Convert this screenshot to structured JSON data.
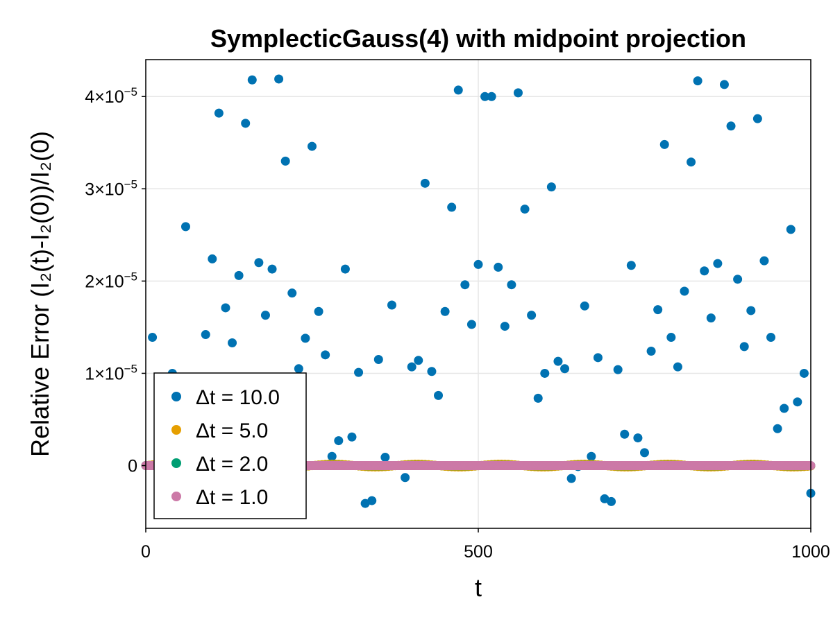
{
  "chart_data": {
    "type": "scatter",
    "title": "SymplecticGauss(4) with midpoint projection",
    "xlabel": "t",
    "ylabel": "Relative Error (I₂(t)-I₂(0))/I₂(0)",
    "xlim": [
      0,
      1000
    ],
    "ylim": [
      -6.8e-06,
      4.4e-05
    ],
    "x_ticks": [
      0,
      500,
      1000
    ],
    "x_tick_labels": [
      "0",
      "500",
      "1000"
    ],
    "y_ticks": [
      0,
      1e-05,
      2e-05,
      3e-05,
      4e-05
    ],
    "y_tick_labels": [
      {
        "mantissa": "0",
        "exponent": ""
      },
      {
        "mantissa": "1×10",
        "exponent": "−5"
      },
      {
        "mantissa": "2×10",
        "exponent": "−5"
      },
      {
        "mantissa": "3×10",
        "exponent": "−5"
      },
      {
        "mantissa": "4×10",
        "exponent": "−5"
      }
    ],
    "grid": true,
    "legend_position": "bottom-left",
    "series": [
      {
        "name": "Δt = 10.0",
        "color": "#0072b2",
        "x": [
          0,
          10,
          20,
          30,
          40,
          50,
          60,
          70,
          80,
          90,
          100,
          110,
          120,
          130,
          140,
          150,
          160,
          170,
          180,
          190,
          200,
          210,
          220,
          230,
          240,
          250,
          260,
          270,
          280,
          290,
          300,
          310,
          320,
          330,
          340,
          350,
          360,
          370,
          380,
          390,
          400,
          410,
          420,
          430,
          440,
          450,
          460,
          470,
          480,
          490,
          500,
          510,
          520,
          530,
          540,
          550,
          560,
          570,
          580,
          590,
          600,
          610,
          620,
          630,
          640,
          650,
          660,
          670,
          680,
          690,
          700,
          710,
          720,
          730,
          740,
          750,
          760,
          770,
          780,
          790,
          800,
          810,
          820,
          830,
          840,
          850,
          860,
          870,
          880,
          890,
          900,
          910,
          920,
          930,
          940,
          950,
          960,
          970,
          980,
          990,
          1000
        ],
        "y": [
          0,
          1.39e-05,
          0,
          0,
          1e-05,
          0,
          2.59e-05,
          0,
          0,
          1.42e-05,
          2.24e-05,
          3.82e-05,
          1.71e-05,
          1.33e-05,
          2.06e-05,
          3.71e-05,
          4.18e-05,
          2.2e-05,
          1.63e-05,
          2.13e-05,
          4.19e-05,
          3.3e-05,
          1.87e-05,
          1.05e-05,
          1.38e-05,
          3.46e-05,
          1.67e-05,
          1.2e-05,
          1e-06,
          2.7e-06,
          2.13e-05,
          3.1e-06,
          1.01e-05,
          -4.1e-06,
          -3.8e-06,
          1.15e-05,
          9e-07,
          1.74e-05,
          0,
          -1.3e-06,
          1.07e-05,
          1.14e-05,
          3.06e-05,
          1.02e-05,
          7.6e-06,
          1.67e-05,
          2.8e-05,
          4.07e-05,
          1.96e-05,
          1.53e-05,
          2.18e-05,
          4e-05,
          4e-05,
          2.15e-05,
          1.51e-05,
          1.96e-05,
          4.04e-05,
          2.78e-05,
          1.63e-05,
          7.3e-06,
          1e-05,
          3.02e-05,
          1.13e-05,
          1.05e-05,
          -1.4e-06,
          -1e-07,
          1.73e-05,
          1e-06,
          1.17e-05,
          -3.6e-06,
          -3.9e-06,
          1.04e-05,
          3.4e-06,
          2.17e-05,
          3e-06,
          1.4e-06,
          1.24e-05,
          1.69e-05,
          3.48e-05,
          1.39e-05,
          1.07e-05,
          1.89e-05,
          3.29e-05,
          4.17e-05,
          2.11e-05,
          1.6e-05,
          2.19e-05,
          4.13e-05,
          3.68e-05,
          2.02e-05,
          1.29e-05,
          1.68e-05,
          3.76e-05,
          2.22e-05,
          1.39e-05,
          4e-06,
          6.2e-06,
          2.56e-05,
          6.9e-06,
          1e-05,
          -3e-06
        ]
      },
      {
        "name": "Δt = 5.0",
        "color": "#e69f00",
        "step": 5,
        "amplitude": 1.5e-07
      },
      {
        "name": "Δt = 2.0",
        "color": "#009e73",
        "step": 2,
        "amplitude": 2e-08
      },
      {
        "name": "Δt = 1.0",
        "color": "#cc79a7",
        "step": 1,
        "amplitude": 0
      }
    ]
  }
}
